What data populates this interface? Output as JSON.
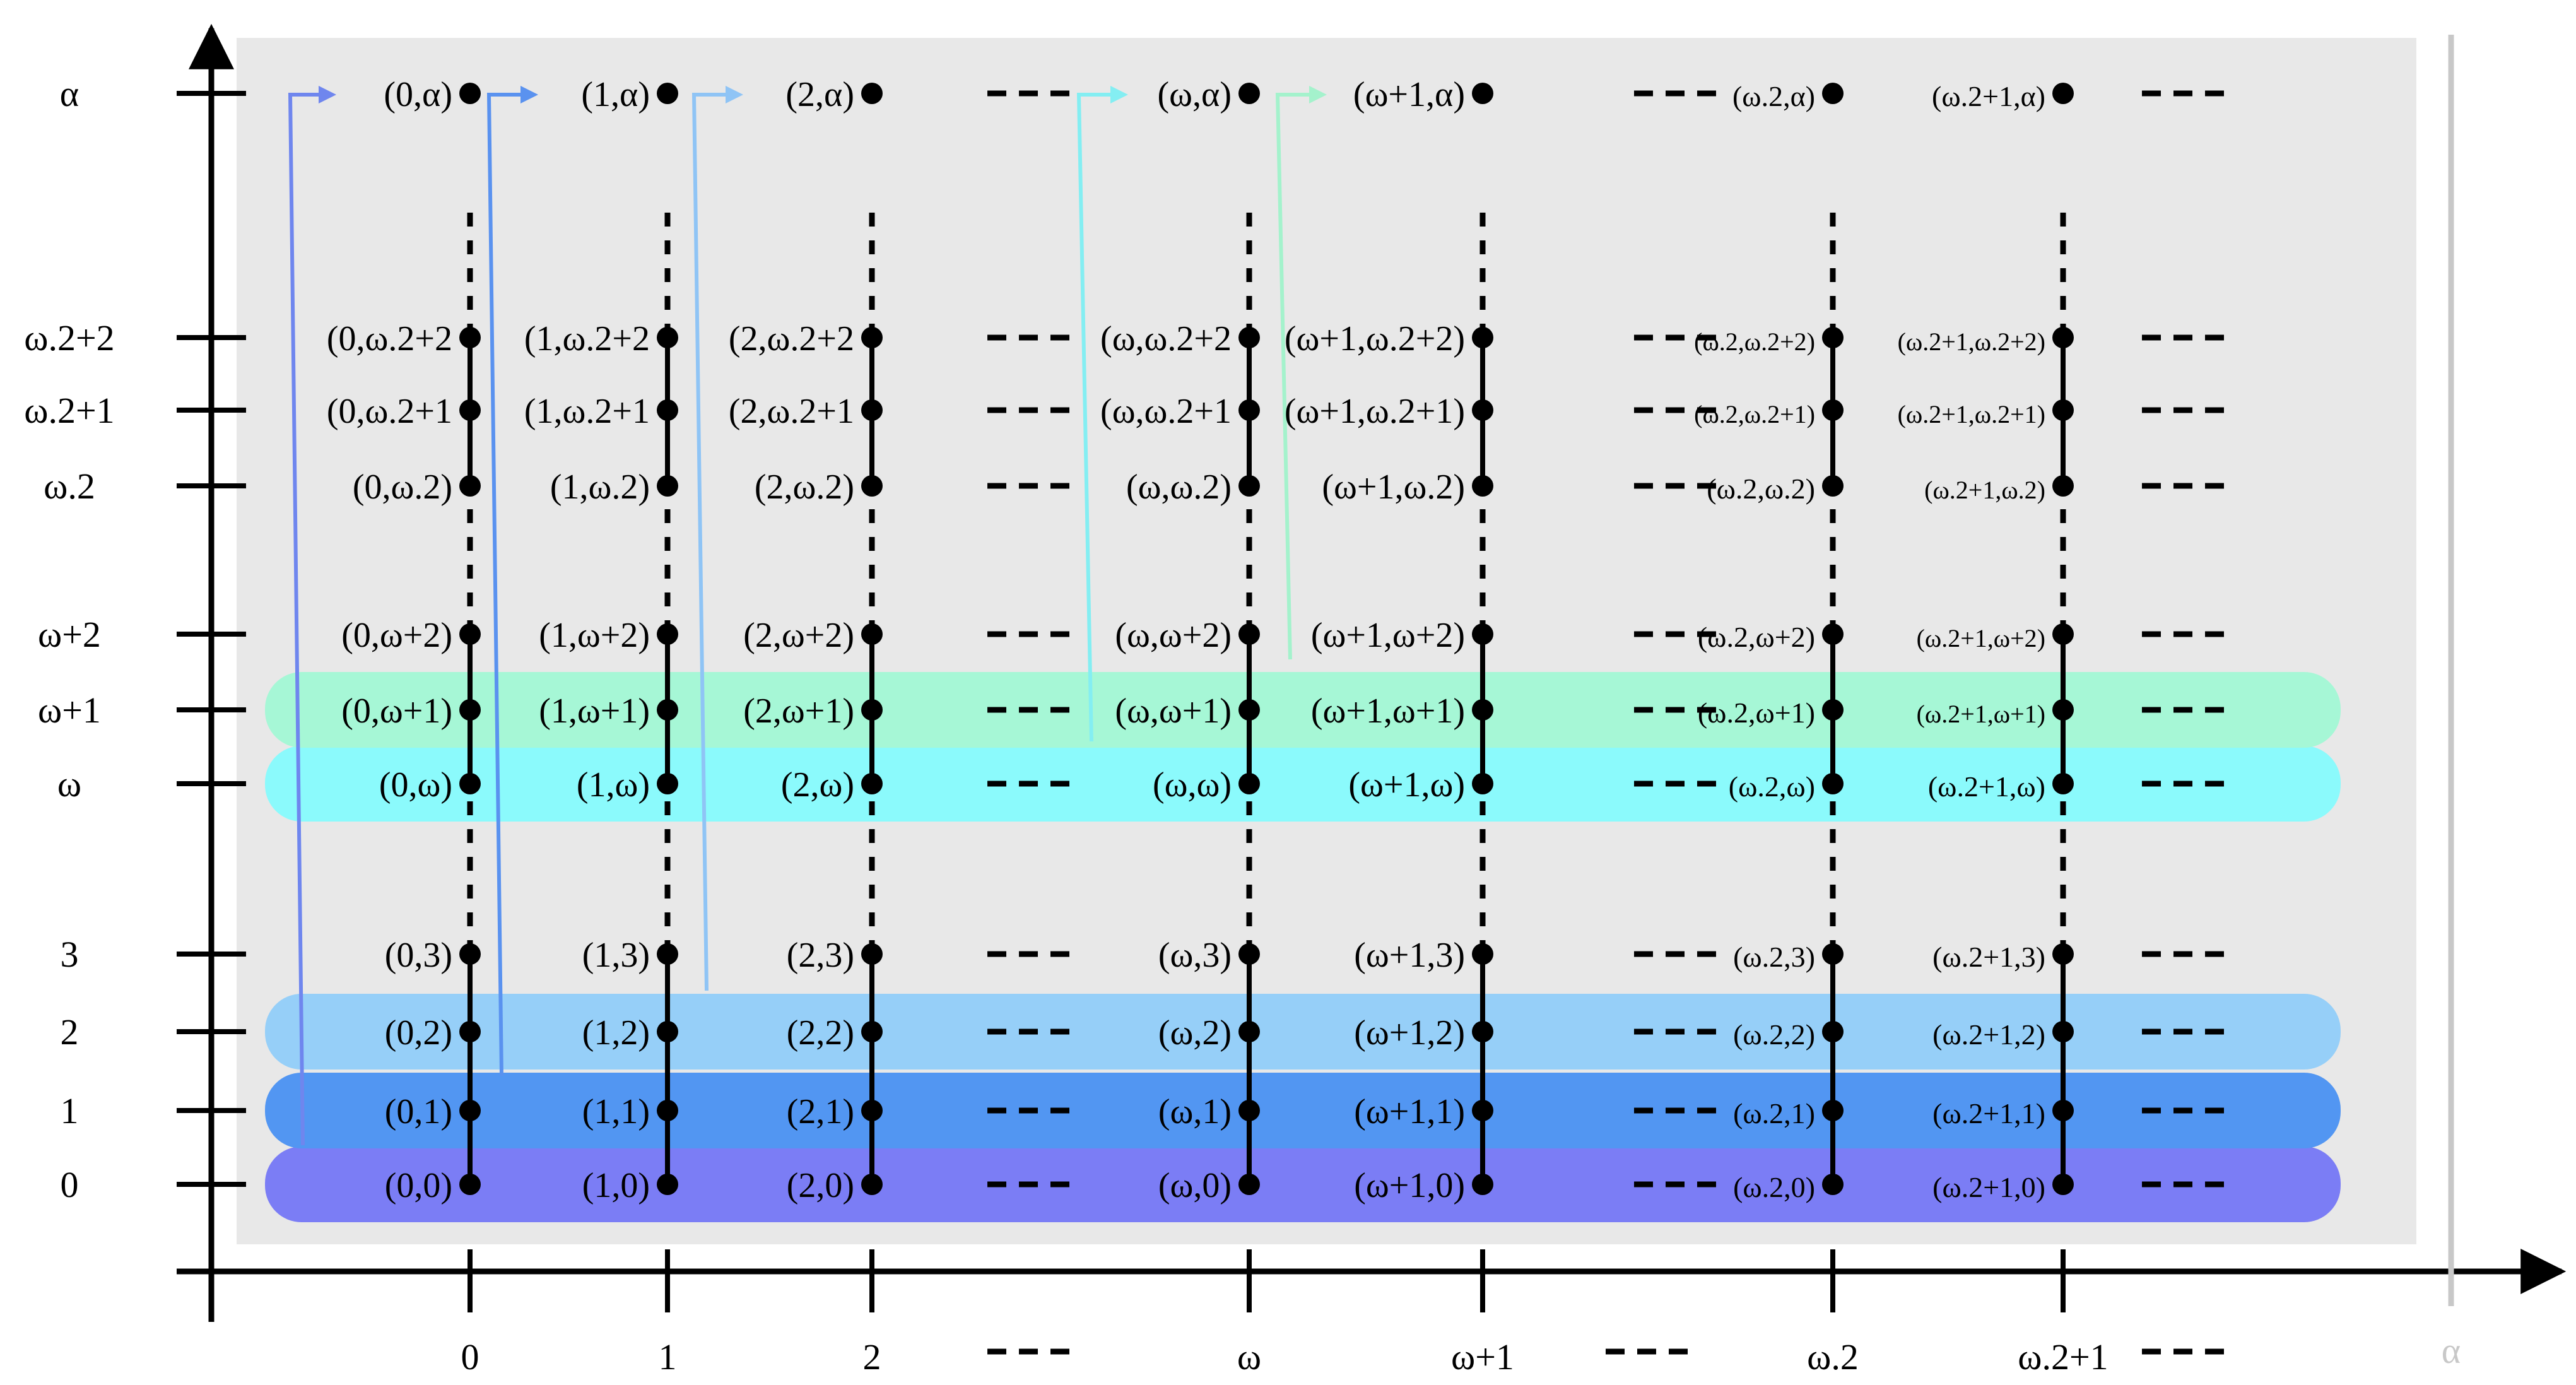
{
  "diagram": {
    "title": "",
    "x_ticks": [
      "0",
      "1",
      "2",
      "ω",
      "ω+1",
      "ω.2",
      "ω.2+1"
    ],
    "x_axis_end_label": "α",
    "y_ticks": [
      "0",
      "1",
      "2",
      "3",
      "ω",
      "ω+1",
      "ω+2",
      "ω.2",
      "ω.2+1",
      "ω.2+2",
      "α"
    ],
    "ellipsis": "- - -",
    "row_bands": [
      {
        "row": "0",
        "color": "#7b7df5"
      },
      {
        "row": "1",
        "color": "#5296f2"
      },
      {
        "row": "2",
        "color": "#96cff8"
      },
      {
        "row": "ω",
        "color": "#8bfafc"
      },
      {
        "row": "ω+1",
        "color": "#a6f7d6"
      }
    ],
    "background_color": "#e8e8e8",
    "arrow_colors": [
      "#6f86ee",
      "#5a92ef",
      "#8fc4f5",
      "#84eef2",
      "#a4f2cc"
    ],
    "points": [
      {
        "label": "(0,0)",
        "col": 0,
        "row": 0
      },
      {
        "label": "(1,0)",
        "col": 1,
        "row": 0
      },
      {
        "label": "(2,0)",
        "col": 2,
        "row": 0
      },
      {
        "label": "(ω,0)",
        "col": 3,
        "row": 0
      },
      {
        "label": "(ω+1,0)",
        "col": 4,
        "row": 0
      },
      {
        "label": "(ω.2,0)",
        "col": 5,
        "row": 0
      },
      {
        "label": "(ω.2+1,0)",
        "col": 6,
        "row": 0
      },
      {
        "label": "(0,1)",
        "col": 0,
        "row": 1
      },
      {
        "label": "(1,1)",
        "col": 1,
        "row": 1
      },
      {
        "label": "(2,1)",
        "col": 2,
        "row": 1
      },
      {
        "label": "(ω,1)",
        "col": 3,
        "row": 1
      },
      {
        "label": "(ω+1,1)",
        "col": 4,
        "row": 1
      },
      {
        "label": "(ω.2,1)",
        "col": 5,
        "row": 1
      },
      {
        "label": "(ω.2+1,1)",
        "col": 6,
        "row": 1
      },
      {
        "label": "(0,2)",
        "col": 0,
        "row": 2
      },
      {
        "label": "(1,2)",
        "col": 1,
        "row": 2
      },
      {
        "label": "(2,2)",
        "col": 2,
        "row": 2
      },
      {
        "label": "(ω,2)",
        "col": 3,
        "row": 2
      },
      {
        "label": "(ω+1,2)",
        "col": 4,
        "row": 2
      },
      {
        "label": "(ω.2,2)",
        "col": 5,
        "row": 2
      },
      {
        "label": "(ω.2+1,2)",
        "col": 6,
        "row": 2
      },
      {
        "label": "(0,3)",
        "col": 0,
        "row": 3
      },
      {
        "label": "(1,3)",
        "col": 1,
        "row": 3
      },
      {
        "label": "(2,3)",
        "col": 2,
        "row": 3
      },
      {
        "label": "(ω,3)",
        "col": 3,
        "row": 3
      },
      {
        "label": "(ω+1,3)",
        "col": 4,
        "row": 3
      },
      {
        "label": "(ω.2,3)",
        "col": 5,
        "row": 3
      },
      {
        "label": "(ω.2+1,3)",
        "col": 6,
        "row": 3
      },
      {
        "label": "(0,ω)",
        "col": 0,
        "row": 4
      },
      {
        "label": "(1,ω)",
        "col": 1,
        "row": 4
      },
      {
        "label": "(2,ω)",
        "col": 2,
        "row": 4
      },
      {
        "label": "(ω,ω)",
        "col": 3,
        "row": 4
      },
      {
        "label": "(ω+1,ω)",
        "col": 4,
        "row": 4
      },
      {
        "label": "(ω.2,ω)",
        "col": 5,
        "row": 4
      },
      {
        "label": "(ω.2+1,ω)",
        "col": 6,
        "row": 4
      },
      {
        "label": "(0,ω+1)",
        "col": 0,
        "row": 5
      },
      {
        "label": "(1,ω+1)",
        "col": 1,
        "row": 5
      },
      {
        "label": "(2,ω+1)",
        "col": 2,
        "row": 5
      },
      {
        "label": "(ω,ω+1)",
        "col": 3,
        "row": 5
      },
      {
        "label": "(ω+1,ω+1)",
        "col": 4,
        "row": 5
      },
      {
        "label": "(ω.2,ω+1)",
        "col": 5,
        "row": 5
      },
      {
        "label": "(ω.2+1,ω+1)",
        "col": 6,
        "row": 5
      },
      {
        "label": "(0,ω+2)",
        "col": 0,
        "row": 6
      },
      {
        "label": "(1,ω+2)",
        "col": 1,
        "row": 6
      },
      {
        "label": "(2,ω+2)",
        "col": 2,
        "row": 6
      },
      {
        "label": "(ω,ω+2)",
        "col": 3,
        "row": 6
      },
      {
        "label": "(ω+1,ω+2)",
        "col": 4,
        "row": 6
      },
      {
        "label": "(ω.2,ω+2)",
        "col": 5,
        "row": 6
      },
      {
        "label": "(ω.2+1,ω+2)",
        "col": 6,
        "row": 6
      },
      {
        "label": "(0,ω.2)",
        "col": 0,
        "row": 7
      },
      {
        "label": "(1,ω.2)",
        "col": 1,
        "row": 7
      },
      {
        "label": "(2,ω.2)",
        "col": 2,
        "row": 7
      },
      {
        "label": "(ω,ω.2)",
        "col": 3,
        "row": 7
      },
      {
        "label": "(ω+1,ω.2)",
        "col": 4,
        "row": 7
      },
      {
        "label": "(ω.2,ω.2)",
        "col": 5,
        "row": 7
      },
      {
        "label": "(ω.2+1,ω.2)",
        "col": 6,
        "row": 7
      },
      {
        "label": "(0,ω.2+1",
        "col": 0,
        "row": 8
      },
      {
        "label": "(1,ω.2+1",
        "col": 1,
        "row": 8
      },
      {
        "label": "(2,ω.2+1",
        "col": 2,
        "row": 8
      },
      {
        "label": "(ω,ω.2+1",
        "col": 3,
        "row": 8
      },
      {
        "label": "(ω+1,ω.2+1)",
        "col": 4,
        "row": 8
      },
      {
        "label": "(ω.2,ω.2+1)",
        "col": 5,
        "row": 8
      },
      {
        "label": "(ω.2+1,ω.2+1)",
        "col": 6,
        "row": 8
      },
      {
        "label": "(0,ω.2+2",
        "col": 0,
        "row": 9
      },
      {
        "label": "(1,ω.2+2",
        "col": 1,
        "row": 9
      },
      {
        "label": "(2,ω.2+2",
        "col": 2,
        "row": 9
      },
      {
        "label": "(ω,ω.2+2",
        "col": 3,
        "row": 9
      },
      {
        "label": "(ω+1,ω.2+2)",
        "col": 4,
        "row": 9
      },
      {
        "label": "(ω.2,ω.2+2)",
        "col": 5,
        "row": 9
      },
      {
        "label": "(ω.2+1,ω.2+2)",
        "col": 6,
        "row": 9
      },
      {
        "label": "(0,α)",
        "col": 0,
        "row": 10
      },
      {
        "label": "(1,α)",
        "col": 1,
        "row": 10
      },
      {
        "label": "(2,α)",
        "col": 2,
        "row": 10
      },
      {
        "label": "(ω,α)",
        "col": 3,
        "row": 10
      },
      {
        "label": "(ω+1,α)",
        "col": 4,
        "row": 10
      },
      {
        "label": "(ω.2,α)",
        "col": 5,
        "row": 10
      },
      {
        "label": "(ω.2+1,α)",
        "col": 6,
        "row": 10
      }
    ]
  }
}
